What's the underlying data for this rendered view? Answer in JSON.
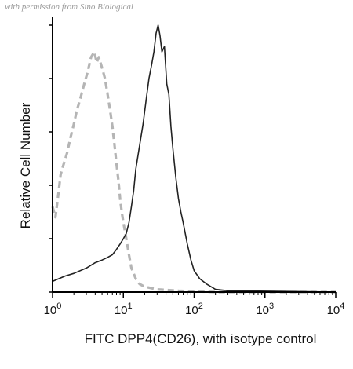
{
  "watermark": "with permission from Sino Biological",
  "chart_data": {
    "type": "area",
    "title": "",
    "xlabel": "FITC DPP4(CD26), with isotype control",
    "ylabel": "Relative Cell Number",
    "x_scale": "log",
    "xlim": [
      1,
      10000
    ],
    "ylim": [
      0,
      100
    ],
    "y_ticks_labeled": false,
    "x_ticks": [
      {
        "value": 1,
        "base": "10",
        "exp": "0"
      },
      {
        "value": 10,
        "base": "10",
        "exp": "1"
      },
      {
        "value": 100,
        "base": "10",
        "exp": "2"
      },
      {
        "value": 1000,
        "base": "10",
        "exp": "3"
      },
      {
        "value": 10000,
        "base": "10",
        "exp": "4"
      }
    ],
    "grid": false,
    "legend": "none",
    "series": [
      {
        "role": "isotype control",
        "color": "#b5b5b5",
        "style": "dashed",
        "x": [
          1.0,
          1.1,
          1.2,
          1.3,
          1.4,
          1.6,
          1.8,
          2.0,
          2.2,
          2.5,
          2.8,
          3.1,
          3.5,
          3.9,
          4.2,
          4.5,
          5.0,
          5.5,
          6.0,
          6.5,
          7.0,
          7.5,
          8.0,
          8.5,
          9.0,
          9.5,
          10,
          11,
          12,
          13,
          15,
          17,
          20,
          30,
          60,
          100,
          200,
          10000
        ],
        "y": [
          32,
          28,
          36,
          44,
          47,
          52,
          58,
          63,
          68,
          73,
          78,
          82,
          88,
          90,
          86,
          88,
          84,
          80,
          74,
          68,
          62,
          55,
          48,
          42,
          35,
          30,
          26,
          20,
          14,
          9,
          5,
          3,
          2,
          1,
          0.5,
          0.3,
          0,
          0
        ]
      },
      {
        "role": "DPP4 (CD26)",
        "color": "#222222",
        "style": "solid",
        "x": [
          1.0,
          1.5,
          2.0,
          3.0,
          4.0,
          5.0,
          6.0,
          7.0,
          8.0,
          9.0,
          10,
          11,
          12,
          13,
          14,
          15,
          17,
          19,
          21,
          23,
          25,
          27,
          29,
          31,
          33,
          35,
          38,
          41,
          44,
          47,
          50,
          55,
          60,
          65,
          70,
          80,
          90,
          100,
          120,
          150,
          200,
          300,
          10000
        ],
        "y": [
          4,
          6,
          7,
          9,
          11,
          12,
          13,
          14,
          16,
          18,
          20,
          22,
          26,
          32,
          38,
          46,
          55,
          63,
          72,
          80,
          85,
          90,
          97,
          100,
          96,
          90,
          92,
          78,
          74,
          62,
          54,
          43,
          35,
          30,
          26,
          18,
          12,
          8,
          5,
          3,
          1,
          0.5,
          0
        ]
      }
    ]
  }
}
